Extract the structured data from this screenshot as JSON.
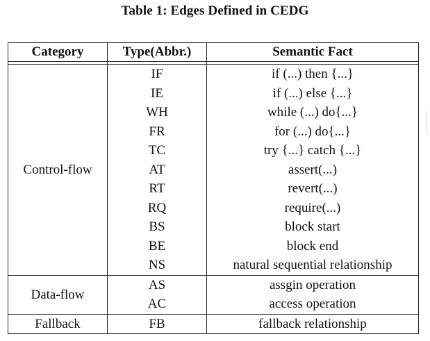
{
  "caption": "Table 1: Edges Defined in CEDG",
  "headers": [
    "Category",
    "Type(Abbr.)",
    "Semantic Fact"
  ],
  "groups": [
    {
      "category": "Control-flow",
      "rows": [
        {
          "type": "IF",
          "fact": "if (...) then {...}"
        },
        {
          "type": "IE",
          "fact": "if (...) else {...}"
        },
        {
          "type": "WH",
          "fact": "while (...) do{...}"
        },
        {
          "type": "FR",
          "fact": "for (...) do{...}"
        },
        {
          "type": "TC",
          "fact": "try {...} catch {...}"
        },
        {
          "type": "AT",
          "fact": "assert(...)"
        },
        {
          "type": "RT",
          "fact": "revert(...)"
        },
        {
          "type": "RQ",
          "fact": "require(...)"
        },
        {
          "type": "BS",
          "fact": "block start"
        },
        {
          "type": "BE",
          "fact": "block end"
        },
        {
          "type": "NS",
          "fact": "natural sequential relationship"
        }
      ]
    },
    {
      "category": "Data-flow",
      "rows": [
        {
          "type": "AS",
          "fact": "assgin operation"
        },
        {
          "type": "AC",
          "fact": "access operation"
        }
      ]
    },
    {
      "category": "Fallback",
      "rows": [
        {
          "type": "FB",
          "fact": "fallback relationship"
        }
      ]
    }
  ]
}
